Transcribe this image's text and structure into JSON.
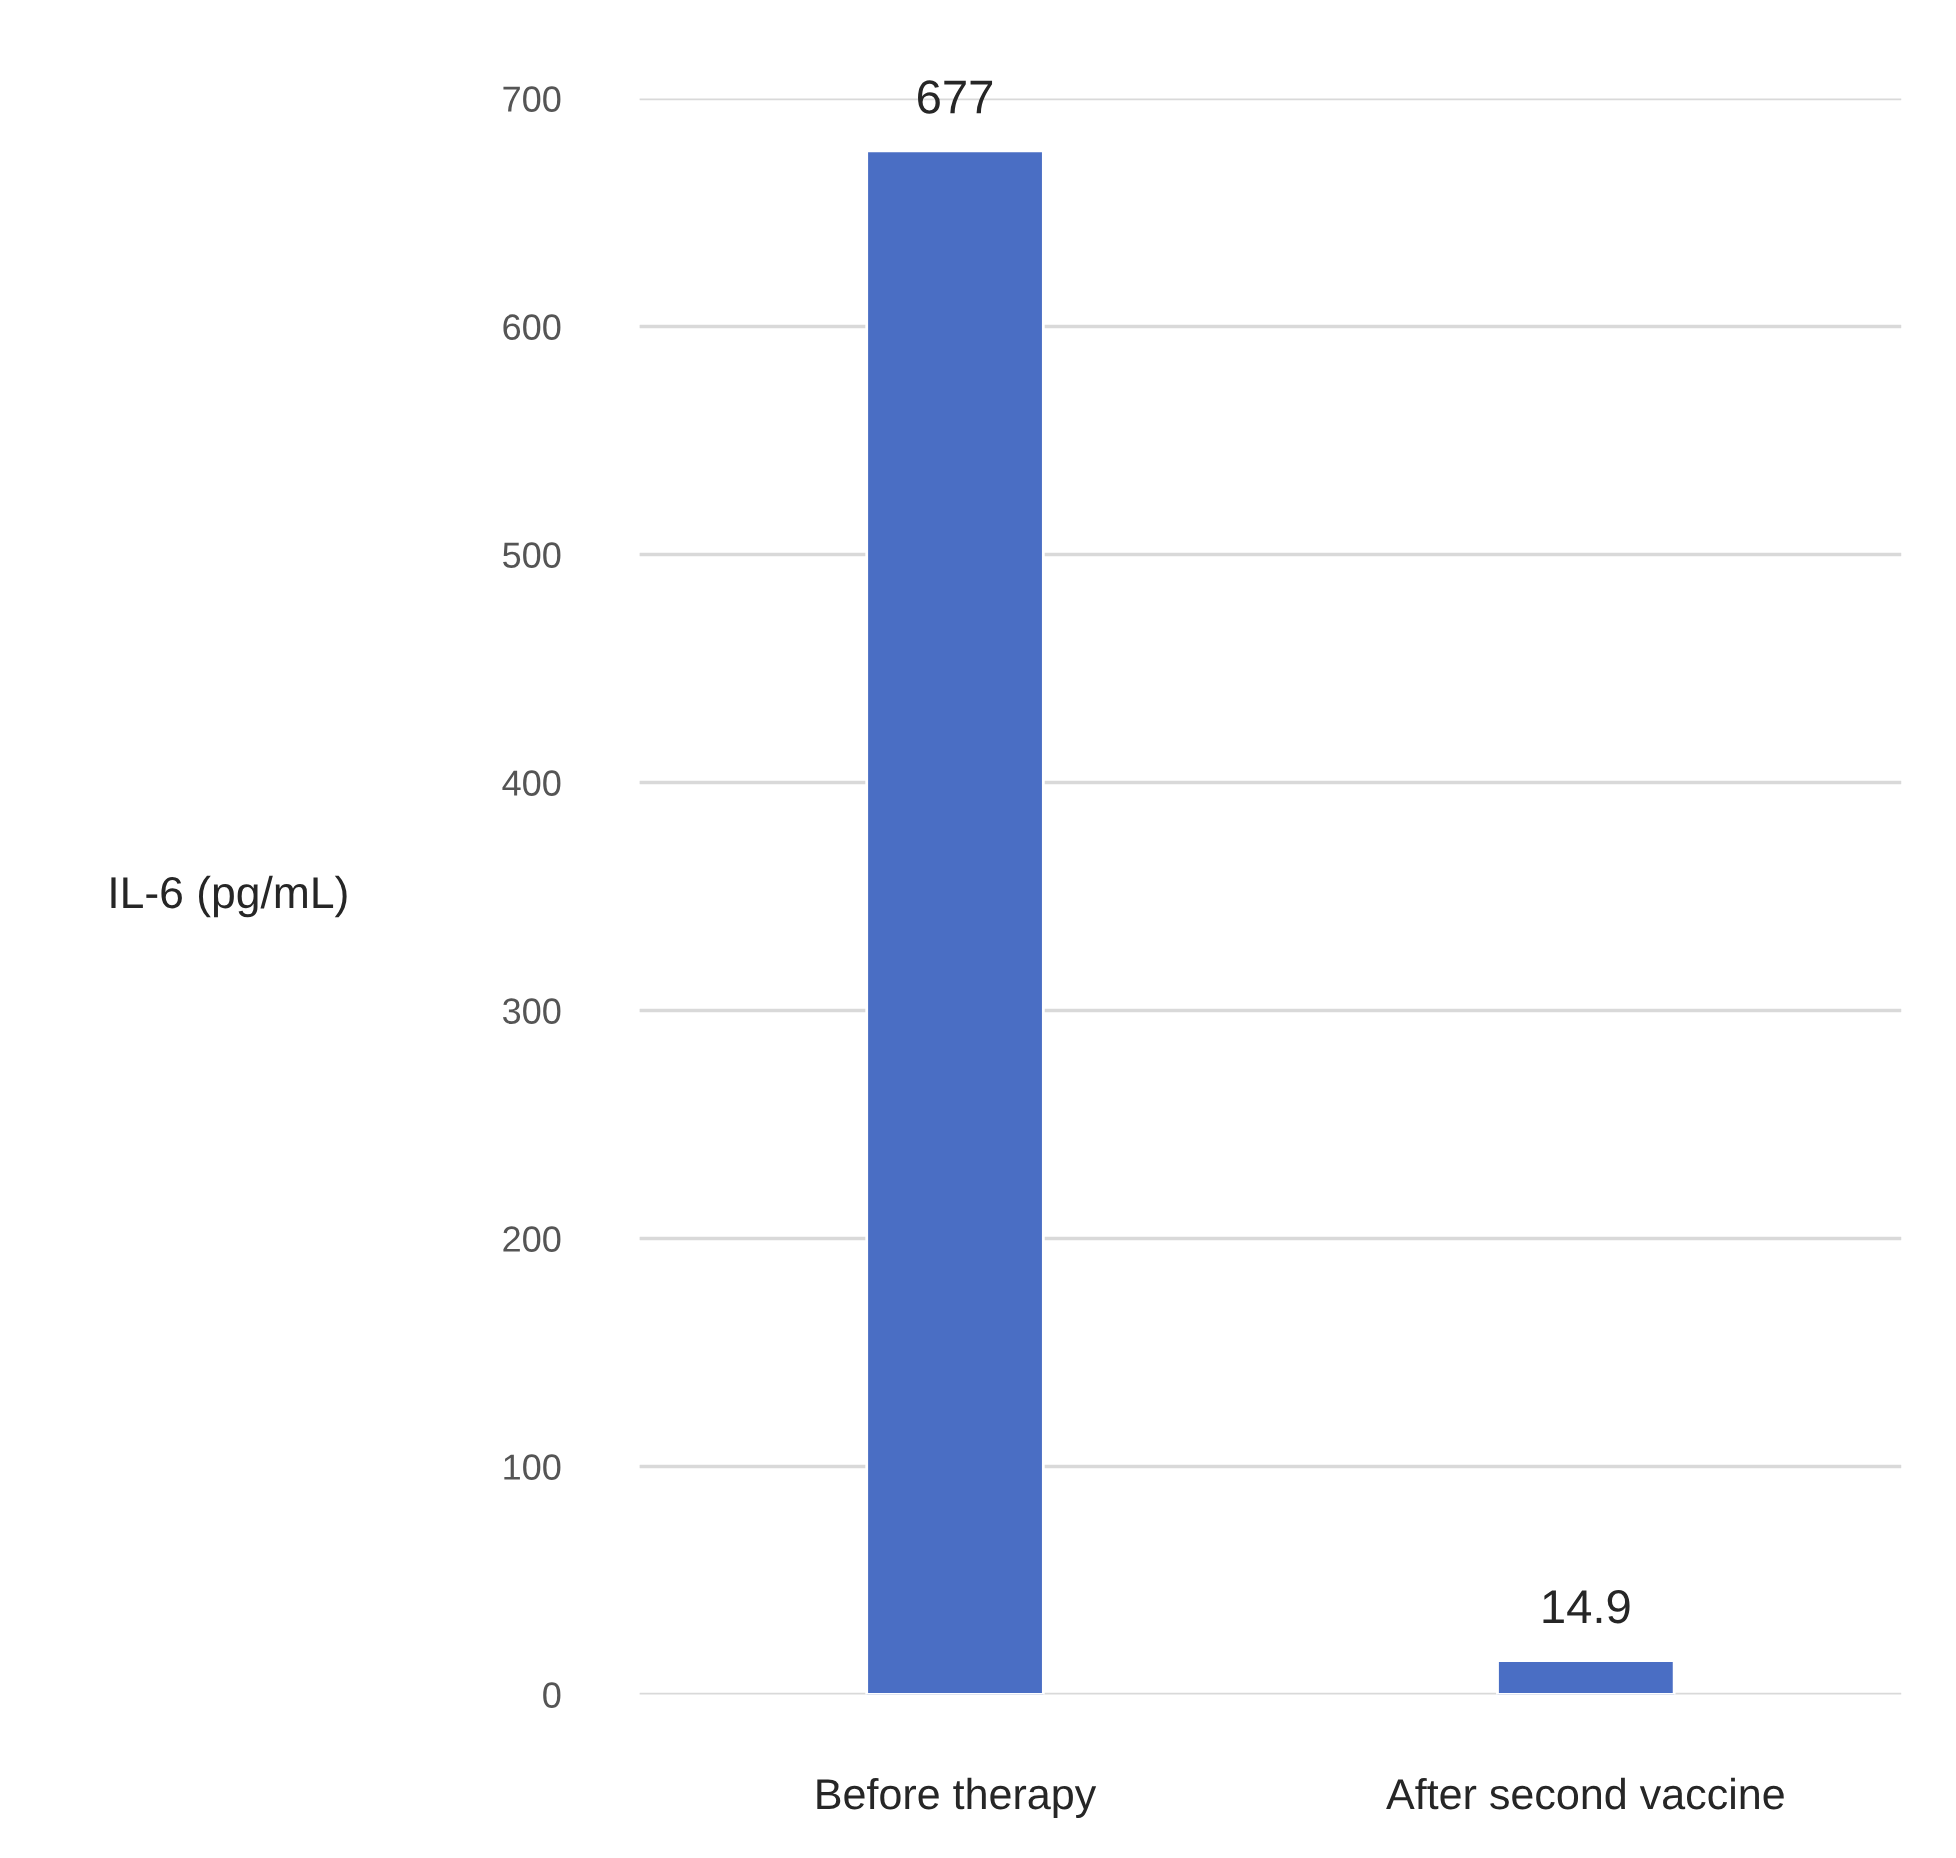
{
  "chart_data": {
    "type": "bar",
    "ylabel": "IL-6 (pg/mL)",
    "categories": [
      "Before therapy",
      "After second vaccine"
    ],
    "values": [
      677,
      14.9
    ],
    "color": "#4a6ec4",
    "ylim": [
      0,
      700
    ],
    "yticks": [
      0,
      100,
      200,
      300,
      400,
      500,
      600,
      700
    ],
    "grid": "y",
    "data_labels": true
  }
}
